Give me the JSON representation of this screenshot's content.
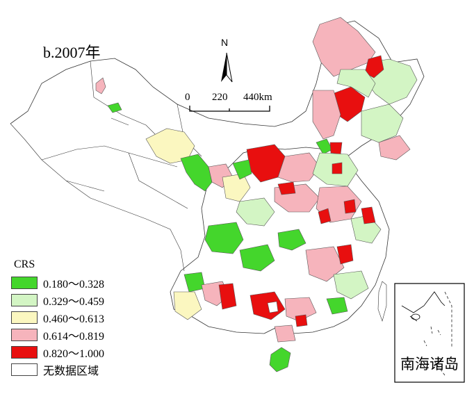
{
  "map": {
    "title": "b.2007年",
    "north_label": "N",
    "scale": {
      "ticks": [
        "0",
        "220",
        "440km"
      ]
    },
    "inset_label": "南海诸岛"
  },
  "legend": {
    "title": "CRS",
    "items": [
      {
        "label": "0.180～0.328",
        "color": "#44d62c"
      },
      {
        "label": "0.329～0.459",
        "color": "#d3f5c4"
      },
      {
        "label": "0.460～0.613",
        "color": "#fbf7c0"
      },
      {
        "label": "0.614～0.819",
        "color": "#f6b4bc"
      },
      {
        "label": "0.820～1.000",
        "color": "#e80f0f"
      },
      {
        "label": "无数据区域",
        "color": "#ffffff"
      }
    ]
  }
}
